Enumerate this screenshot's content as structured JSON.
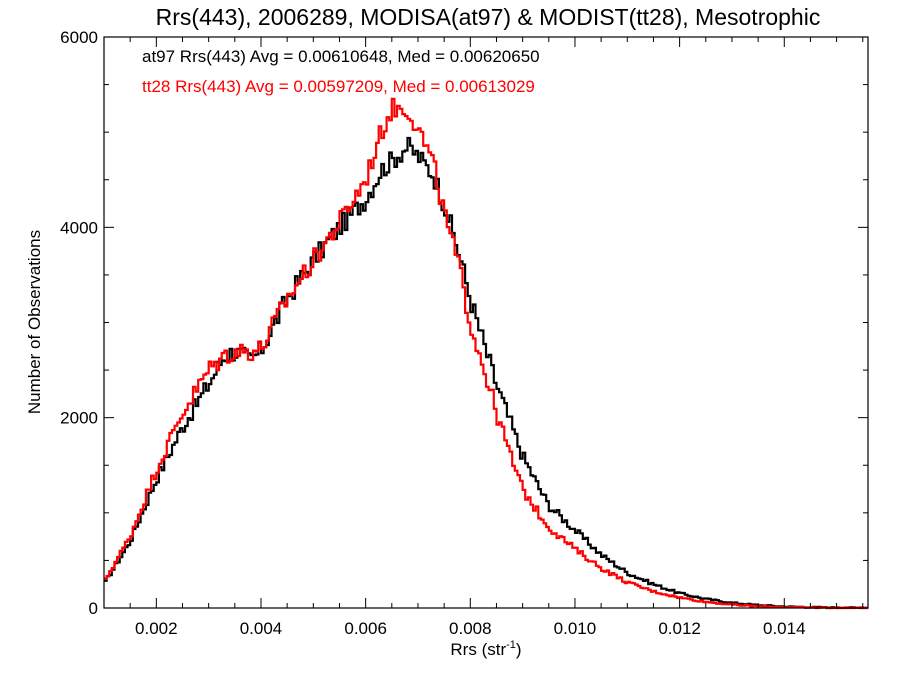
{
  "chart_data": {
    "type": "line",
    "style": "histogram-step",
    "title": "Rrs(443), 2006289, MODISA(at97) & MODIST(tt28), Mesotrophic",
    "xlabel": "Rrs (str",
    "xlabel_sup": "-1",
    "xlabel_end": ")",
    "ylabel": "Number of Observations",
    "xlim": [
      0.001,
      0.0156
    ],
    "ylim": [
      0,
      6000
    ],
    "x_ticks": [
      0.002,
      0.004,
      0.006,
      0.008,
      0.01,
      0.012,
      0.014
    ],
    "x_tick_labels": [
      "0.002",
      "0.004",
      "0.006",
      "0.008",
      "0.010",
      "0.012",
      "0.014"
    ],
    "y_ticks": [
      0,
      2000,
      4000,
      6000
    ],
    "y_tick_labels": [
      "0",
      "2000",
      "4000",
      "6000"
    ],
    "legend_placement": "top-left",
    "series": [
      {
        "color": "#000000",
        "annotation": "at97 Rrs(443) Avg = 0.00610648, Med = 0.00620650",
        "x": [
          0.001,
          0.0015,
          0.002,
          0.0025,
          0.003,
          0.0033,
          0.0035,
          0.0038,
          0.004,
          0.0045,
          0.005,
          0.0055,
          0.006,
          0.0063,
          0.0065,
          0.0068,
          0.007,
          0.0073,
          0.0075,
          0.0078,
          0.008,
          0.0083,
          0.0085,
          0.0088,
          0.009,
          0.0093,
          0.0095,
          0.01,
          0.0105,
          0.011,
          0.0115,
          0.012,
          0.0125,
          0.013,
          0.0135,
          0.014,
          0.0145,
          0.015,
          0.0156
        ],
        "y": [
          250,
          700,
          1350,
          1900,
          2350,
          2650,
          2700,
          2600,
          2700,
          3250,
          3650,
          4000,
          4300,
          4600,
          4700,
          4850,
          4750,
          4550,
          4250,
          3700,
          3250,
          2700,
          2350,
          1900,
          1600,
          1280,
          1080,
          820,
          560,
          370,
          250,
          155,
          95,
          55,
          30,
          15,
          8,
          4,
          2
        ]
      },
      {
        "color": "#ff0000",
        "annotation": "tt28 Rrs(443) Avg = 0.00597209, Med = 0.00613029",
        "x": [
          0.001,
          0.0015,
          0.002,
          0.0025,
          0.003,
          0.0033,
          0.0035,
          0.0038,
          0.004,
          0.0045,
          0.005,
          0.0055,
          0.006,
          0.0063,
          0.0065,
          0.0068,
          0.007,
          0.0073,
          0.0075,
          0.0078,
          0.008,
          0.0083,
          0.0085,
          0.0088,
          0.009,
          0.0093,
          0.0095,
          0.01,
          0.0105,
          0.011,
          0.0115,
          0.012,
          0.0125,
          0.013,
          0.0135,
          0.014,
          0.0145,
          0.015,
          0.0156
        ],
        "y": [
          270,
          750,
          1450,
          2050,
          2500,
          2650,
          2700,
          2700,
          2720,
          3250,
          3650,
          4050,
          4500,
          5000,
          5250,
          5250,
          5050,
          4650,
          4150,
          3550,
          3000,
          2450,
          2050,
          1550,
          1250,
          1000,
          850,
          620,
          420,
          270,
          175,
          110,
          65,
          35,
          18,
          9,
          5,
          3,
          2
        ]
      }
    ]
  }
}
